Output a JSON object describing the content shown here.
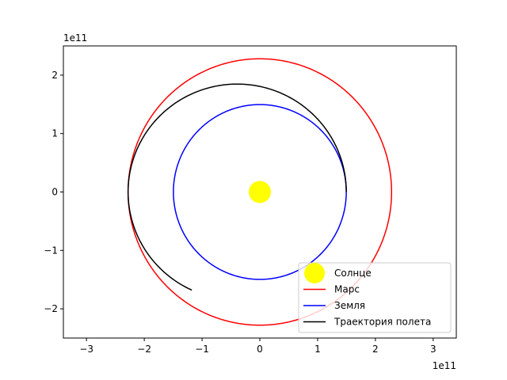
{
  "chart_data": {
    "type": "line",
    "title": "",
    "xlabel": "",
    "ylabel": "",
    "x_offset_text": "1e11",
    "y_offset_text": "1e11",
    "xlim": [
      -3.4,
      3.4
    ],
    "ylim": [
      -2.5,
      2.5
    ],
    "x_ticks": [
      -3,
      -2,
      -1,
      0,
      1,
      2,
      3
    ],
    "y_ticks": [
      -2,
      -1,
      0,
      1,
      2
    ],
    "x_tick_labels": [
      "−3",
      "−2",
      "−1",
      "0",
      "1",
      "2",
      "3"
    ],
    "y_tick_labels": [
      "−2",
      "−1",
      "0",
      "1",
      "2"
    ],
    "grid": false,
    "legend_position": "bottom-right",
    "series": [
      {
        "name": "Солнце",
        "kind": "point",
        "color": "#ffff00",
        "x": 0,
        "y": 0
      },
      {
        "name": "Марс",
        "kind": "orbit",
        "color": "#ff0000",
        "center": [
          0,
          0
        ],
        "radius": 2.28
      },
      {
        "name": "Земля",
        "kind": "orbit",
        "color": "#0000ff",
        "center": [
          0,
          0
        ],
        "radius": 1.496
      },
      {
        "name": "Траектория полета",
        "kind": "transfer_arc",
        "color": "#000000",
        "perihelion": 1.496,
        "aphelion": 2.28,
        "start_angle_deg": 0,
        "end_angle_deg": 235
      }
    ]
  }
}
